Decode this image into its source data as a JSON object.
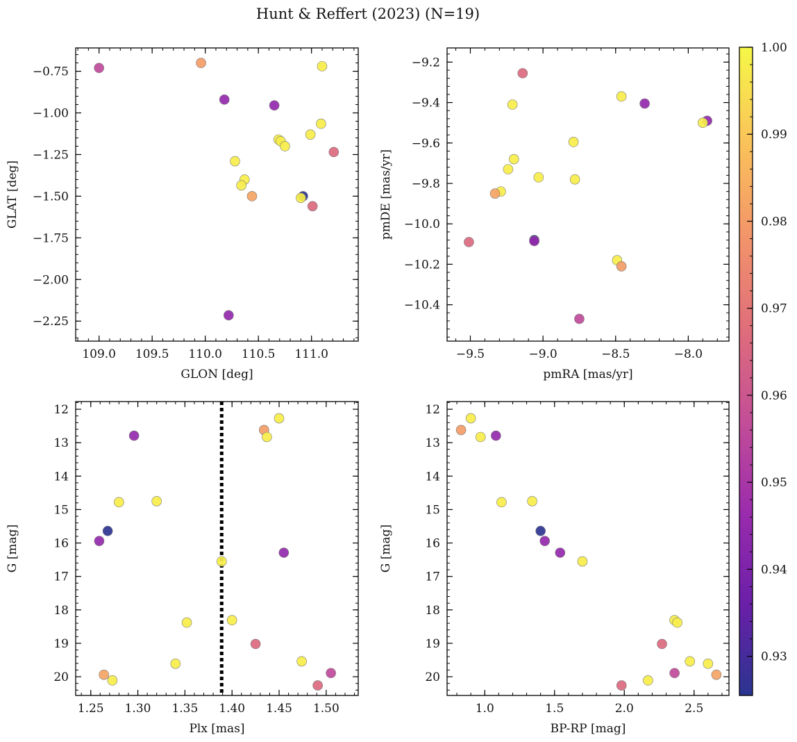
{
  "figure": {
    "title": "Hunt & Reffert (2023) (N=19)"
  },
  "colorbar": {
    "colormap": "plasma",
    "vmin": 0.9255,
    "vmax": 1.0,
    "ticks": [
      0.93,
      0.94,
      0.95,
      0.96,
      0.97,
      0.98,
      0.99,
      1.0
    ],
    "tick_labels": [
      "0.93",
      "0.94",
      "0.95",
      "0.96",
      "0.97",
      "0.98",
      "0.99",
      "1.00"
    ]
  },
  "chart_data": [
    {
      "type": "scatter",
      "xlabel": "GLON [deg]",
      "ylabel": "GLAT [deg]",
      "xlim": [
        108.78,
        111.44
      ],
      "ylim": [
        -2.37,
        -0.61
      ],
      "y_inverted": false,
      "xticks": [
        109.0,
        109.5,
        110.0,
        110.5,
        111.0
      ],
      "xtick_labels": [
        "109.0",
        "109.5",
        "110.0",
        "110.5",
        "111.0"
      ],
      "yticks": [
        -0.75,
        -1.0,
        -1.25,
        -1.5,
        -1.75,
        -2.0,
        -2.25
      ],
      "ytick_labels": [
        "−0.75",
        "−1.00",
        "−1.25",
        "−1.50",
        "−1.75",
        "−2.00",
        "−2.25"
      ],
      "points": [
        {
          "x": 109.0,
          "y": -0.73,
          "c": 0.956
        },
        {
          "x": 109.96,
          "y": -0.7,
          "c": 0.98
        },
        {
          "x": 110.18,
          "y": -0.92,
          "c": 0.945
        },
        {
          "x": 110.65,
          "y": -0.955,
          "c": 0.945
        },
        {
          "x": 111.1,
          "y": -0.72,
          "c": 0.998
        },
        {
          "x": 111.09,
          "y": -1.065,
          "c": 0.998
        },
        {
          "x": 110.99,
          "y": -1.13,
          "c": 0.998
        },
        {
          "x": 110.69,
          "y": -1.16,
          "c": 0.998
        },
        {
          "x": 110.71,
          "y": -1.17,
          "c": 0.998
        },
        {
          "x": 110.75,
          "y": -1.2,
          "c": 0.998
        },
        {
          "x": 111.21,
          "y": -1.235,
          "c": 0.966
        },
        {
          "x": 110.28,
          "y": -1.29,
          "c": 0.998
        },
        {
          "x": 110.37,
          "y": -1.4,
          "c": 0.998
        },
        {
          "x": 110.34,
          "y": -1.435,
          "c": 0.998
        },
        {
          "x": 110.44,
          "y": -1.5,
          "c": 0.982
        },
        {
          "x": 110.92,
          "y": -1.5,
          "c": 0.926
        },
        {
          "x": 110.9,
          "y": -1.51,
          "c": 0.998
        },
        {
          "x": 111.01,
          "y": -1.56,
          "c": 0.966
        },
        {
          "x": 110.22,
          "y": -2.215,
          "c": 0.945
        }
      ]
    },
    {
      "type": "scatter",
      "xlabel": "pmRA [mas/yr]",
      "ylabel": "pmDE [mas/yr]",
      "xlim": [
        -9.66,
        -7.72
      ],
      "ylim": [
        -10.58,
        -9.13
      ],
      "y_inverted": false,
      "xticks": [
        -9.5,
        -9.0,
        -8.5,
        -8.0
      ],
      "xtick_labels": [
        "−9.5",
        "−9.0",
        "−8.5",
        "−8.0"
      ],
      "yticks": [
        -9.2,
        -9.4,
        -9.6,
        -9.8,
        -10.0,
        -10.2,
        -10.4
      ],
      "ytick_labels": [
        "−9.2",
        "−9.4",
        "−9.6",
        "−9.8",
        "−10.0",
        "−10.2",
        "−10.4"
      ],
      "points": [
        {
          "x": -9.14,
          "y": -9.255,
          "c": 0.966
        },
        {
          "x": -8.46,
          "y": -9.37,
          "c": 0.998
        },
        {
          "x": -8.3,
          "y": -9.405,
          "c": 0.945
        },
        {
          "x": -9.21,
          "y": -9.41,
          "c": 0.998
        },
        {
          "x": -7.87,
          "y": -9.49,
          "c": 0.945
        },
        {
          "x": -7.9,
          "y": -9.5,
          "c": 0.998
        },
        {
          "x": -8.79,
          "y": -9.595,
          "c": 0.998
        },
        {
          "x": -9.2,
          "y": -9.68,
          "c": 0.998
        },
        {
          "x": -9.24,
          "y": -9.73,
          "c": 0.998
        },
        {
          "x": -9.03,
          "y": -9.77,
          "c": 0.998
        },
        {
          "x": -8.78,
          "y": -9.78,
          "c": 0.998
        },
        {
          "x": -9.29,
          "y": -9.84,
          "c": 0.998
        },
        {
          "x": -9.33,
          "y": -9.85,
          "c": 0.982
        },
        {
          "x": -9.06,
          "y": -10.08,
          "c": 0.926
        },
        {
          "x": -9.06,
          "y": -10.085,
          "c": 0.945
        },
        {
          "x": -9.51,
          "y": -10.09,
          "c": 0.966
        },
        {
          "x": -8.49,
          "y": -10.18,
          "c": 0.998
        },
        {
          "x": -8.46,
          "y": -10.21,
          "c": 0.98
        },
        {
          "x": -8.75,
          "y": -10.47,
          "c": 0.956
        }
      ]
    },
    {
      "type": "scatter",
      "xlabel": "Plx [mas]",
      "ylabel": "G [mag]",
      "xlim": [
        1.234,
        1.534
      ],
      "ylim": [
        20.56,
        11.77
      ],
      "y_inverted": true,
      "xticks": [
        1.25,
        1.3,
        1.35,
        1.4,
        1.45,
        1.5
      ],
      "xtick_labels": [
        "1.25",
        "1.30",
        "1.35",
        "1.40",
        "1.45",
        "1.50"
      ],
      "yticks": [
        12,
        13,
        14,
        15,
        16,
        17,
        18,
        19,
        20
      ],
      "ytick_labels": [
        "12",
        "13",
        "14",
        "15",
        "16",
        "17",
        "18",
        "19",
        "20"
      ],
      "vline_x": 1.389,
      "points": [
        {
          "x": 1.45,
          "y": 12.27,
          "c": 0.998
        },
        {
          "x": 1.434,
          "y": 12.62,
          "c": 0.98
        },
        {
          "x": 1.437,
          "y": 12.83,
          "c": 0.998
        },
        {
          "x": 1.296,
          "y": 12.79,
          "c": 0.945
        },
        {
          "x": 1.28,
          "y": 14.78,
          "c": 0.998
        },
        {
          "x": 1.32,
          "y": 14.75,
          "c": 0.998
        },
        {
          "x": 1.268,
          "y": 15.64,
          "c": 0.926
        },
        {
          "x": 1.259,
          "y": 15.94,
          "c": 0.945
        },
        {
          "x": 1.455,
          "y": 16.29,
          "c": 0.945
        },
        {
          "x": 1.389,
          "y": 16.55,
          "c": 0.998
        },
        {
          "x": 1.4,
          "y": 18.31,
          "c": 0.998
        },
        {
          "x": 1.352,
          "y": 18.38,
          "c": 0.998
        },
        {
          "x": 1.425,
          "y": 19.02,
          "c": 0.966
        },
        {
          "x": 1.474,
          "y": 19.54,
          "c": 0.998
        },
        {
          "x": 1.34,
          "y": 19.61,
          "c": 0.998
        },
        {
          "x": 1.505,
          "y": 19.89,
          "c": 0.956
        },
        {
          "x": 1.264,
          "y": 19.94,
          "c": 0.982
        },
        {
          "x": 1.273,
          "y": 20.11,
          "c": 0.998
        },
        {
          "x": 1.491,
          "y": 20.26,
          "c": 0.966
        }
      ]
    },
    {
      "type": "scatter",
      "xlabel": "BP-RP [mag]",
      "ylabel": "G [mag]",
      "xlim": [
        0.73,
        2.75
      ],
      "ylim": [
        20.56,
        11.77
      ],
      "y_inverted": true,
      "xticks": [
        1.0,
        1.5,
        2.0,
        2.5
      ],
      "xtick_labels": [
        "1.0",
        "1.5",
        "2.0",
        "2.5"
      ],
      "yticks": [
        12,
        13,
        14,
        15,
        16,
        17,
        18,
        19,
        20
      ],
      "ytick_labels": [
        "12",
        "13",
        "14",
        "15",
        "16",
        "17",
        "18",
        "19",
        "20"
      ],
      "points": [
        {
          "x": 0.9,
          "y": 12.27,
          "c": 0.998
        },
        {
          "x": 0.83,
          "y": 12.62,
          "c": 0.98
        },
        {
          "x": 0.97,
          "y": 12.83,
          "c": 0.998
        },
        {
          "x": 1.08,
          "y": 12.79,
          "c": 0.945
        },
        {
          "x": 1.12,
          "y": 14.78,
          "c": 0.998
        },
        {
          "x": 1.34,
          "y": 14.75,
          "c": 0.998
        },
        {
          "x": 1.4,
          "y": 15.64,
          "c": 0.926
        },
        {
          "x": 1.43,
          "y": 15.94,
          "c": 0.945
        },
        {
          "x": 1.54,
          "y": 16.29,
          "c": 0.945
        },
        {
          "x": 1.7,
          "y": 16.55,
          "c": 0.998
        },
        {
          "x": 2.36,
          "y": 18.31,
          "c": 0.998
        },
        {
          "x": 2.38,
          "y": 18.38,
          "c": 0.998
        },
        {
          "x": 2.27,
          "y": 19.02,
          "c": 0.966
        },
        {
          "x": 2.47,
          "y": 19.54,
          "c": 0.998
        },
        {
          "x": 2.6,
          "y": 19.61,
          "c": 0.998
        },
        {
          "x": 2.36,
          "y": 19.89,
          "c": 0.956
        },
        {
          "x": 2.66,
          "y": 19.94,
          "c": 0.982
        },
        {
          "x": 2.17,
          "y": 20.11,
          "c": 0.998
        },
        {
          "x": 1.98,
          "y": 20.26,
          "c": 0.966
        }
      ]
    }
  ]
}
